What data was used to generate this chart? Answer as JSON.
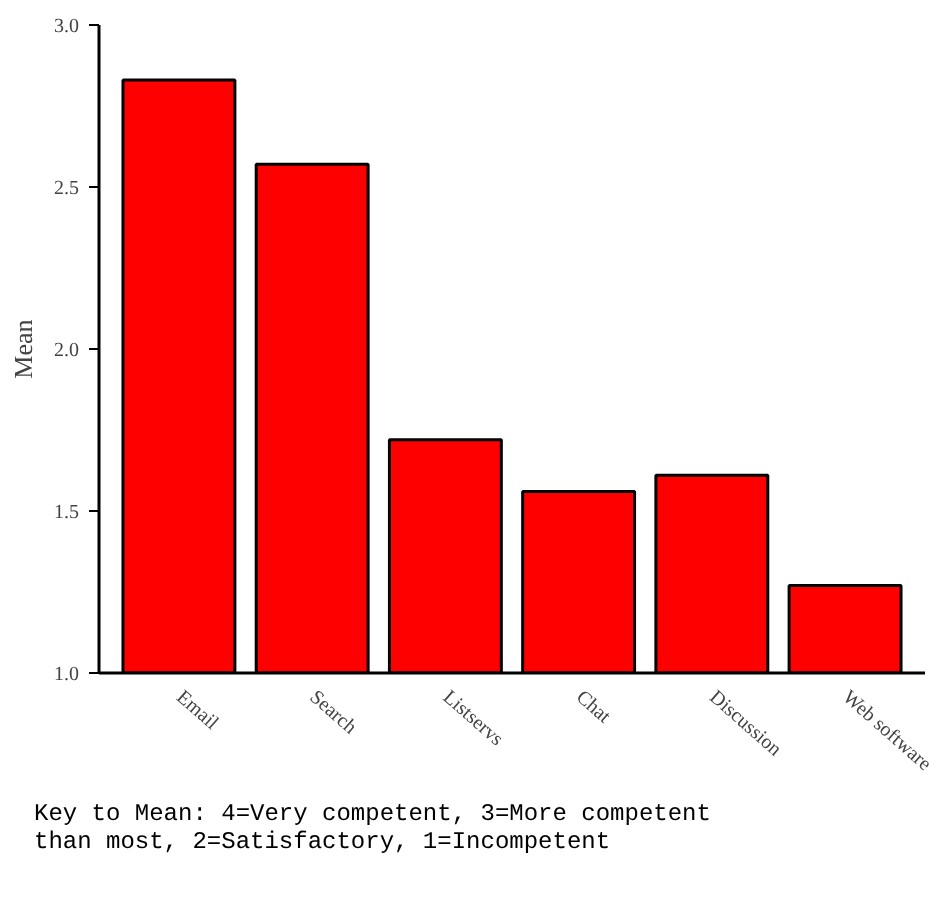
{
  "chart_data": {
    "type": "bar",
    "ylabel": "Mean",
    "categories": [
      "Email",
      "Search",
      "Listservs",
      "Chat",
      "Discussion",
      "Web software"
    ],
    "values": [
      2.83,
      2.57,
      1.72,
      1.56,
      1.61,
      1.27
    ],
    "color": "#ff0000",
    "ylim": [
      1.0,
      3.0
    ],
    "yticks": [
      {
        "value": 1.0,
        "label": "1.0"
      },
      {
        "value": 1.5,
        "label": "1.5"
      },
      {
        "value": 2.0,
        "label": "2.0"
      },
      {
        "value": 2.5,
        "label": "2.5"
      },
      {
        "value": 3.0,
        "label": "3.0"
      }
    ],
    "grid": false,
    "annotations": [
      "Key to Mean: 4=Very competent, 3=More competent than most, 2=Satisfactory, 1=Incompetent"
    ]
  }
}
